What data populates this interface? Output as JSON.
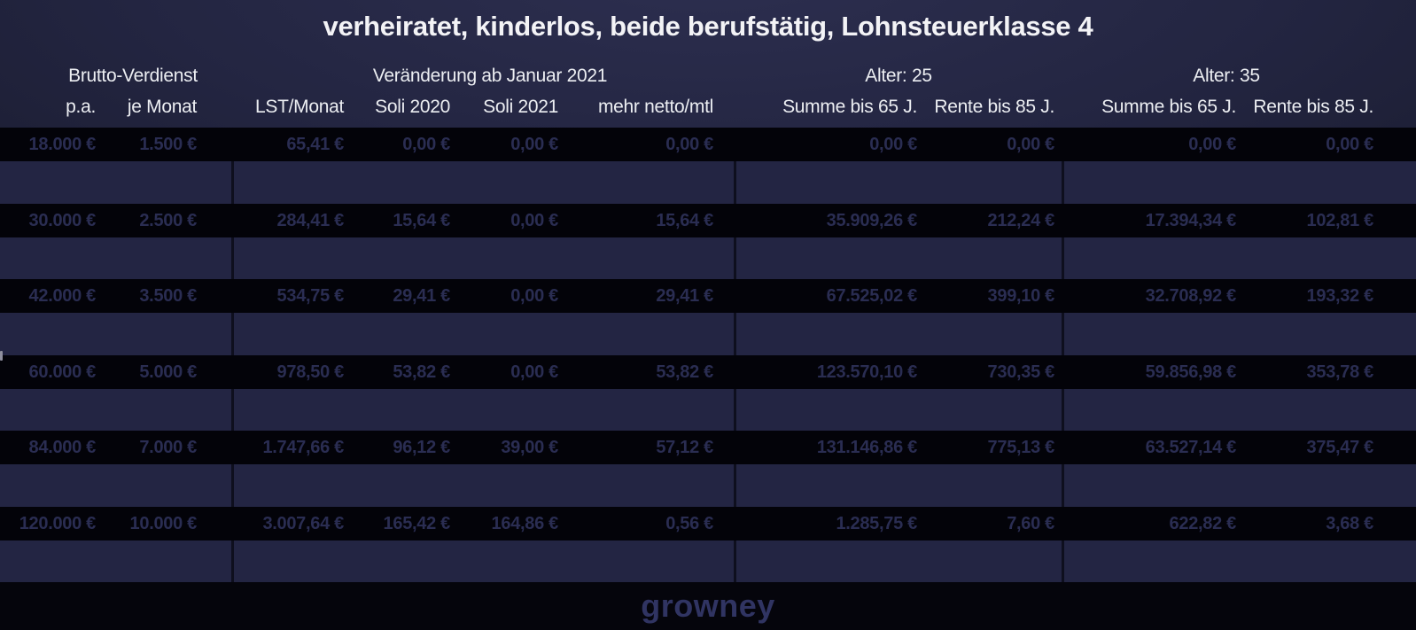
{
  "chart_data": {
    "type": "table",
    "title": "verheiratet, kinderlos, beide berufstätig, Lohnsteuerklasse 4",
    "group_headers": [
      {
        "label": "Brutto-Verdienst",
        "columns": [
          "p.a.",
          "je Monat"
        ]
      },
      {
        "label": "Veränderung ab Januar 2021",
        "columns": [
          "LST/Monat",
          "Soli 2020",
          "Soli 2021",
          "mehr netto/mtl"
        ]
      },
      {
        "label": "Alter: 25",
        "columns": [
          "Summe bis 65 J.",
          "Rente bis 85 J."
        ]
      },
      {
        "label": "Alter: 35",
        "columns": [
          "Summe bis 65 J.",
          "Rente bis 85 J."
        ]
      }
    ],
    "columns": [
      "p.a.",
      "je Monat",
      "LST/Monat",
      "Soli 2020",
      "Soli 2021",
      "mehr netto/mtl",
      "Summe bis 65 J.",
      "Rente bis 85 J.",
      "Summe bis 65 J.",
      "Rente bis 85 J."
    ],
    "rows": [
      [
        "18.000 €",
        "1.500 €",
        "65,41 €",
        "0,00 €",
        "0,00 €",
        "0,00 €",
        "0,00 €",
        "0,00 €",
        "0,00 €",
        "0,00 €"
      ],
      [
        "30.000 €",
        "2.500 €",
        "284,41 €",
        "15,64 €",
        "0,00 €",
        "15,64 €",
        "35.909,26 €",
        "212,24 €",
        "17.394,34 €",
        "102,81 €"
      ],
      [
        "42.000 €",
        "3.500 €",
        "534,75 €",
        "29,41 €",
        "0,00 €",
        "29,41 €",
        "67.525,02 €",
        "399,10 €",
        "32.708,92 €",
        "193,32 €"
      ],
      [
        "60.000 €",
        "5.000 €",
        "978,50 €",
        "53,82 €",
        "0,00 €",
        "53,82 €",
        "123.570,10 €",
        "730,35 €",
        "59.856,98 €",
        "353,78 €"
      ],
      [
        "84.000 €",
        "7.000 €",
        "1.747,66 €",
        "96,12 €",
        "39,00 €",
        "57,12 €",
        "131.146,86 €",
        "775,13 €",
        "63.527,14 €",
        "375,47 €"
      ],
      [
        "120.000 €",
        "10.000 €",
        "3.007,64 €",
        "165,42 €",
        "164,86 €",
        "0,56 €",
        "1.285,75 €",
        "7,60 €",
        "622,82 €",
        "3,68 €"
      ]
    ]
  },
  "footer": {
    "logo_text": "growney"
  },
  "colors": {
    "header_navy": "#232541",
    "row_black": "#030309",
    "gap_navy": "#232543",
    "value_text": "#2a2d52",
    "header_text": "#eceef2",
    "logo_text": "#303462"
  }
}
